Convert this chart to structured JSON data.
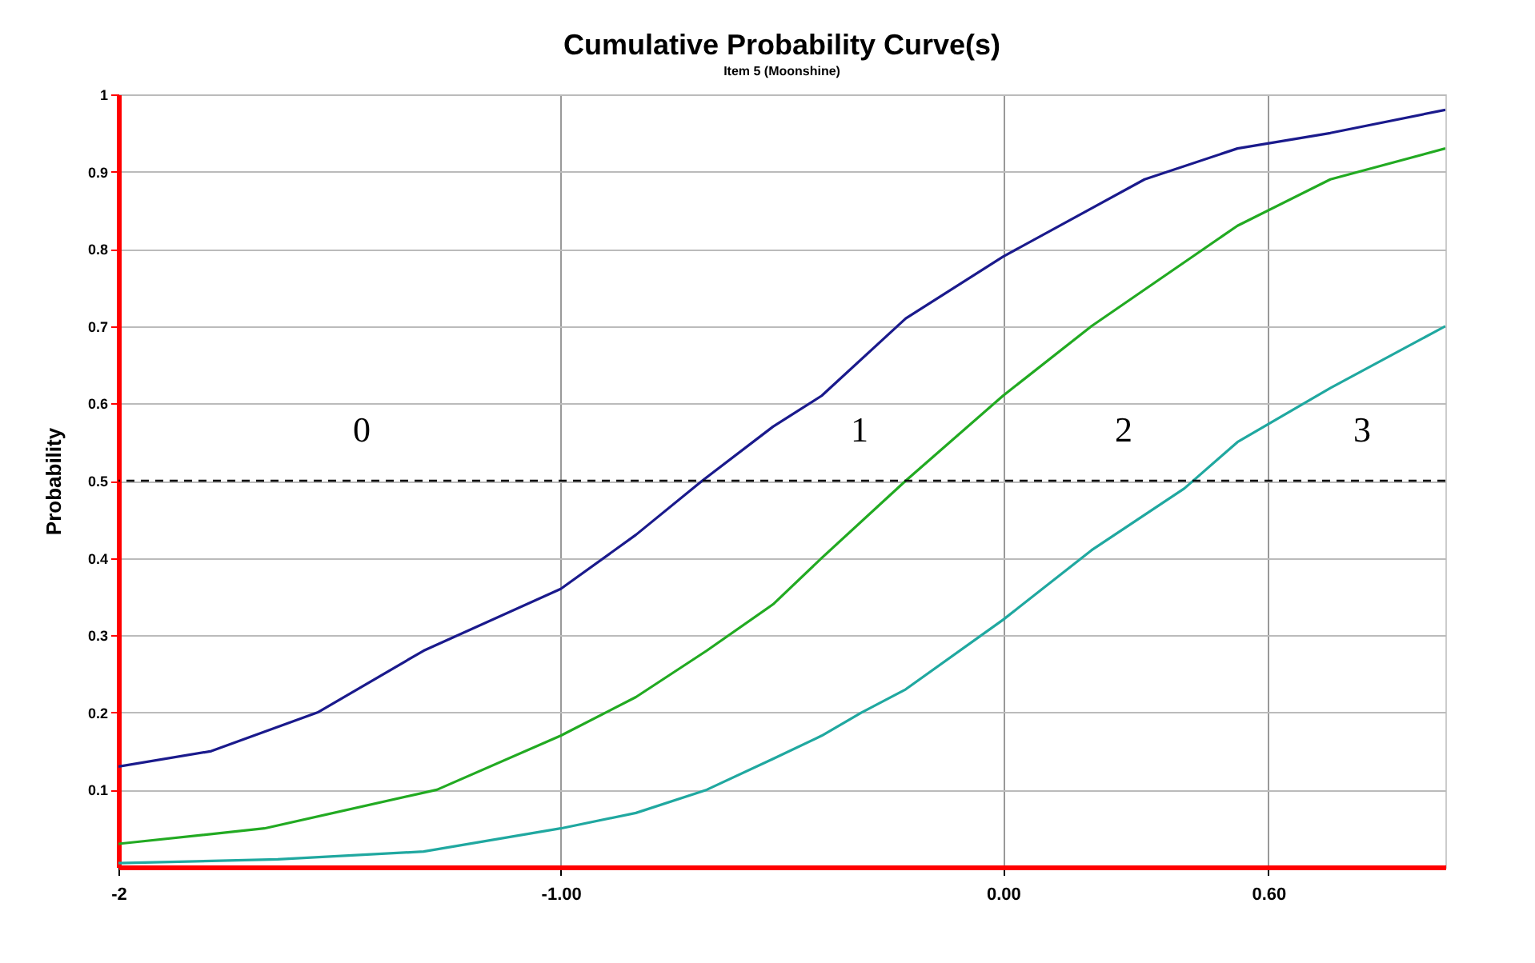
{
  "chart_data": {
    "type": "line",
    "title": "Cumulative Probability Curve(s)",
    "subtitle": "Item 5 (Moonshine)",
    "ylabel": "Probability",
    "xlim": [
      -2,
      1
    ],
    "xticks": [
      {
        "value": -2,
        "label": "-2"
      },
      {
        "value": -1,
        "label": "-1.00"
      },
      {
        "value": 0,
        "label": "0.00"
      },
      {
        "value": 0.6,
        "label": "0.60"
      }
    ],
    "ylim": [
      0,
      1
    ],
    "yticks": [
      0.1,
      0.2,
      0.3,
      0.4,
      0.5,
      0.6,
      0.7,
      0.8,
      0.9,
      1
    ],
    "grid": true,
    "marker": "none",
    "line_style": "solid",
    "series": [
      {
        "color": "#1a1a8c",
        "x": [
          -2,
          -1.79,
          -1.55,
          -1.31,
          -1,
          -0.83,
          -0.68,
          -0.52,
          -0.41,
          -0.22,
          0,
          0.32,
          0.53,
          0.74,
          1
        ],
        "values": [
          0.13,
          0.15,
          0.2,
          0.28,
          0.36,
          0.43,
          0.5,
          0.57,
          0.61,
          0.71,
          0.79,
          0.89,
          0.93,
          0.95,
          0.98
        ]
      },
      {
        "color": "#22aa22",
        "x": [
          -2,
          -1.67,
          -1.28,
          -1,
          -0.83,
          -0.67,
          -0.52,
          -0.41,
          -0.22,
          0,
          0.2,
          0.53,
          0.74,
          1
        ],
        "values": [
          0.03,
          0.05,
          0.1,
          0.17,
          0.22,
          0.28,
          0.34,
          0.4,
          0.5,
          0.61,
          0.7,
          0.83,
          0.89,
          0.93
        ]
      },
      {
        "color": "#20a8a0",
        "x": [
          -2,
          -1.64,
          -1.31,
          -1,
          -0.83,
          -0.67,
          -0.52,
          -0.41,
          -0.32,
          -0.22,
          0,
          0.2,
          0.41,
          0.53,
          0.74,
          1
        ],
        "values": [
          0.005,
          0.01,
          0.02,
          0.05,
          0.07,
          0.1,
          0.14,
          0.17,
          0.2,
          0.23,
          0.32,
          0.41,
          0.49,
          0.55,
          0.62,
          0.7
        ]
      }
    ],
    "ref_lines": [
      {
        "axis": "y",
        "value": 0.5,
        "color": "#000000",
        "line_style": "dashed"
      }
    ],
    "annotations": [
      "0",
      "1",
      "2",
      "3"
    ]
  }
}
